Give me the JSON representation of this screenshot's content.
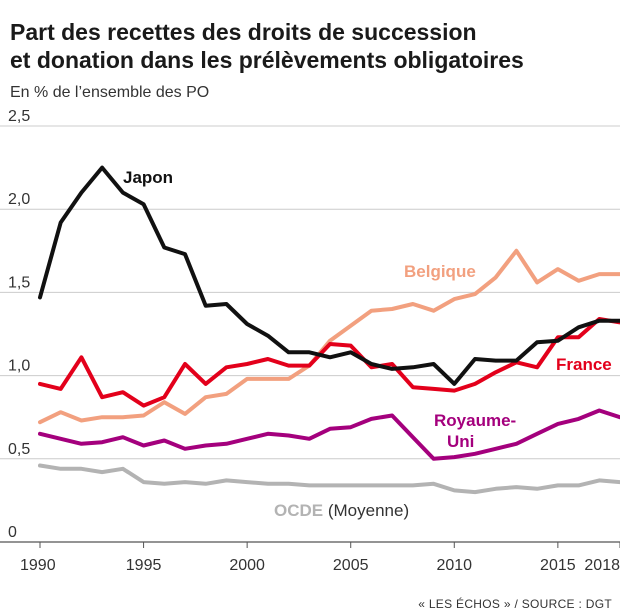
{
  "header": {
    "title_line1": "Part des recettes des droits de succession",
    "title_line2": "et donation dans les prélèvements obligatoires",
    "subtitle": "En % de l’ensemble des PO"
  },
  "footer": {
    "source": "« LES ÉCHOS » / SOURCE : DGT"
  },
  "chart_data": {
    "type": "line",
    "title": "Part des recettes des droits de succession et donation dans les prélèvements obligatoires",
    "subtitle": "En % de l’ensemble des PO",
    "xlabel": "",
    "ylabel": "",
    "xlim": [
      1990,
      2018
    ],
    "ylim": [
      0,
      2.5
    ],
    "x_ticks": [
      "1990",
      "1995",
      "2000",
      "2005",
      "2010",
      "2015",
      "2018"
    ],
    "y_ticks": [
      "0",
      "0,5",
      "1,0",
      "1,5",
      "2,0",
      "2,5"
    ],
    "grid": "horizontal",
    "x": [
      1990,
      1991,
      1992,
      1993,
      1994,
      1995,
      1996,
      1997,
      1998,
      1999,
      2000,
      2001,
      2002,
      2003,
      2004,
      2005,
      2006,
      2007,
      2008,
      2009,
      2010,
      2011,
      2012,
      2013,
      2014,
      2015,
      2016,
      2017,
      2018
    ],
    "series": [
      {
        "name": "Japon",
        "label_lines": [
          "Japon"
        ],
        "color": "#111111",
        "values": [
          1.47,
          1.92,
          2.1,
          2.25,
          2.1,
          2.03,
          1.77,
          1.73,
          1.42,
          1.43,
          1.31,
          1.24,
          1.14,
          1.14,
          1.11,
          1.14,
          1.07,
          1.04,
          1.05,
          1.07,
          0.95,
          1.1,
          1.09,
          1.09,
          1.2,
          1.21,
          1.29,
          1.33,
          1.33
        ]
      },
      {
        "name": "Belgique",
        "label_lines": [
          "Belgique"
        ],
        "color": "#f2a07f",
        "values": [
          0.72,
          0.78,
          0.73,
          0.75,
          0.75,
          0.76,
          0.84,
          0.77,
          0.87,
          0.89,
          0.98,
          0.98,
          0.98,
          1.06,
          1.21,
          1.3,
          1.39,
          1.4,
          1.43,
          1.39,
          1.46,
          1.49,
          1.59,
          1.75,
          1.56,
          1.64,
          1.57,
          1.61,
          1.61
        ]
      },
      {
        "name": "France",
        "label_lines": [
          "France"
        ],
        "color": "#e3001b",
        "values": [
          0.95,
          0.92,
          1.11,
          0.87,
          0.9,
          0.82,
          0.87,
          1.07,
          0.95,
          1.05,
          1.07,
          1.1,
          1.06,
          1.06,
          1.19,
          1.18,
          1.05,
          1.07,
          0.93,
          0.92,
          0.91,
          0.95,
          1.02,
          1.08,
          1.05,
          1.23,
          1.23,
          1.34,
          1.32
        ]
      },
      {
        "name": "Royaume-Uni",
        "label_lines": [
          "Royaume-",
          "Uni"
        ],
        "color": "#a4007d",
        "values": [
          0.65,
          0.62,
          0.59,
          0.6,
          0.63,
          0.58,
          0.61,
          0.56,
          0.58,
          0.59,
          0.62,
          0.65,
          0.64,
          0.62,
          0.68,
          0.69,
          0.74,
          0.76,
          0.63,
          0.5,
          0.51,
          0.53,
          0.56,
          0.59,
          0.65,
          0.71,
          0.74,
          0.79,
          0.75
        ]
      },
      {
        "name": "OCDE (Moyenne)",
        "label_lines": [
          "OCDE",
          "(Moyenne)"
        ],
        "color": "#b3b3b3",
        "values": [
          0.46,
          0.44,
          0.44,
          0.42,
          0.44,
          0.36,
          0.35,
          0.36,
          0.35,
          0.37,
          0.36,
          0.35,
          0.35,
          0.34,
          0.34,
          0.34,
          0.34,
          0.34,
          0.34,
          0.35,
          0.31,
          0.3,
          0.32,
          0.33,
          0.32,
          0.34,
          0.34,
          0.37,
          0.36
        ]
      }
    ]
  }
}
